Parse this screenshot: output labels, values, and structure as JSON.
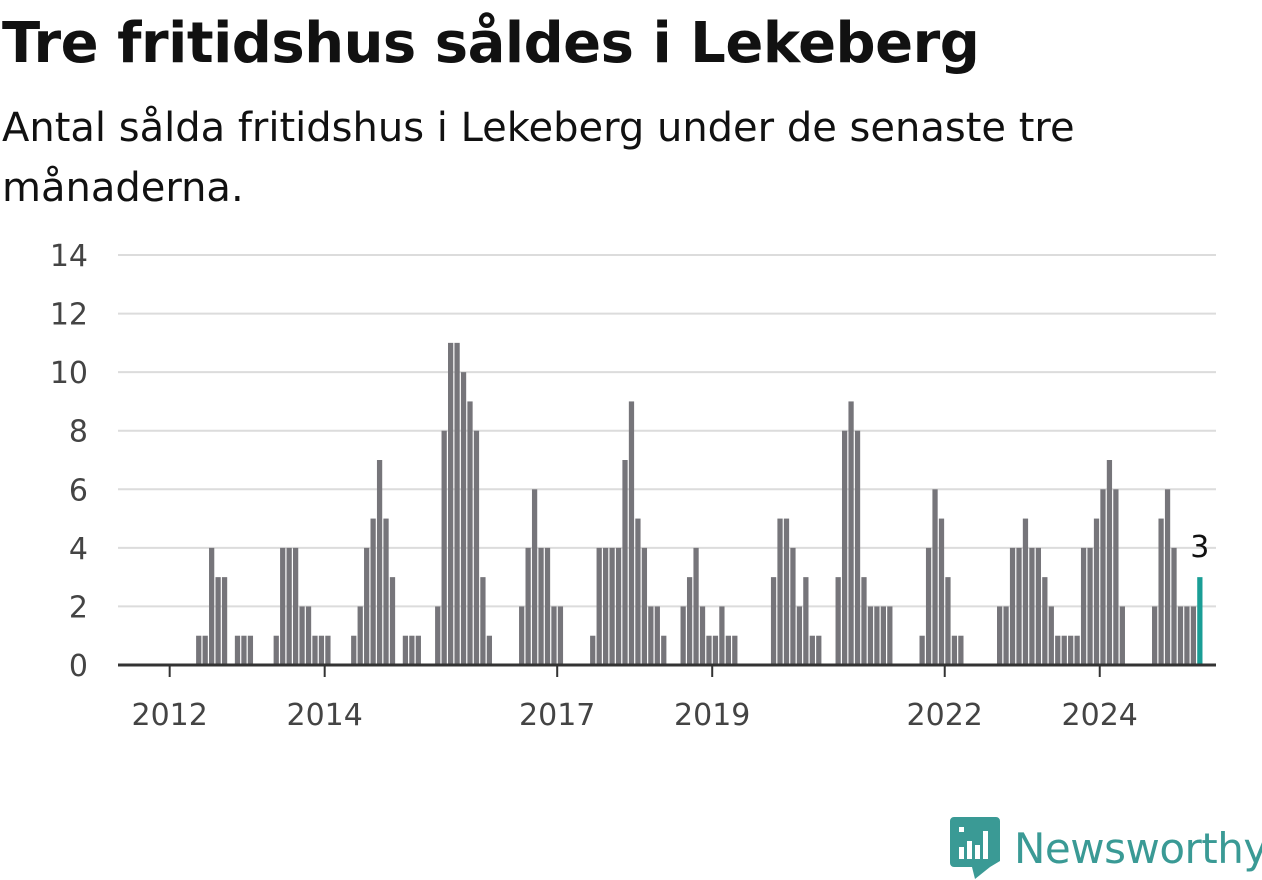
{
  "header": {
    "title": "Tre fritidshus såldes i Lekeberg",
    "subtitle": "Antal sålda fritidshus i Lekeberg under de senaste tre månaderna."
  },
  "brand": {
    "name": "Newsworthy",
    "color": "#3a9a95",
    "icon": "bar-chart-badge-icon"
  },
  "colors": {
    "bar": "#76757a",
    "highlight": "#1a9e96",
    "grid": "#dcdcdc",
    "axis": "#333333"
  },
  "chart_data": {
    "type": "bar",
    "ylim": [
      0,
      14
    ],
    "yticks": [
      0,
      2,
      4,
      6,
      8,
      10,
      12,
      14
    ],
    "xtick_labels": [
      "2012",
      "2014",
      "2017",
      "2019",
      "2022",
      "2024"
    ],
    "xtick_positions": [
      8,
      32,
      68,
      92,
      128,
      152
    ],
    "xlim": [
      0,
      170
    ],
    "grid": true,
    "legend": "none",
    "values": [
      0,
      0,
      0,
      0,
      0,
      0,
      0,
      0,
      0,
      0,
      0,
      0,
      1,
      1,
      4,
      3,
      3,
      0,
      1,
      1,
      1,
      0,
      0,
      0,
      1,
      4,
      4,
      4,
      2,
      2,
      1,
      1,
      1,
      0,
      0,
      0,
      1,
      2,
      4,
      5,
      7,
      5,
      3,
      0,
      1,
      1,
      1,
      0,
      0,
      2,
      8,
      11,
      11,
      10,
      9,
      8,
      3,
      1,
      0,
      0,
      0,
      0,
      2,
      4,
      6,
      4,
      4,
      2,
      2,
      0,
      0,
      0,
      0,
      1,
      4,
      4,
      4,
      4,
      7,
      9,
      5,
      4,
      2,
      2,
      1,
      0,
      0,
      2,
      3,
      4,
      2,
      1,
      1,
      2,
      1,
      1,
      0,
      0,
      0,
      0,
      0,
      3,
      5,
      5,
      4,
      2,
      3,
      1,
      1,
      0,
      0,
      3,
      8,
      9,
      8,
      3,
      2,
      2,
      2,
      2,
      0,
      0,
      0,
      0,
      1,
      4,
      6,
      5,
      3,
      1,
      1,
      0,
      0,
      0,
      0,
      0,
      2,
      2,
      4,
      4,
      5,
      4,
      4,
      3,
      2,
      1,
      1,
      1,
      1,
      4,
      4,
      5,
      6,
      7,
      6,
      2,
      0,
      0,
      0,
      0,
      2,
      5,
      6,
      4,
      2,
      2,
      2,
      3
    ],
    "highlight_last": true,
    "annotation": {
      "text": "3"
    }
  }
}
